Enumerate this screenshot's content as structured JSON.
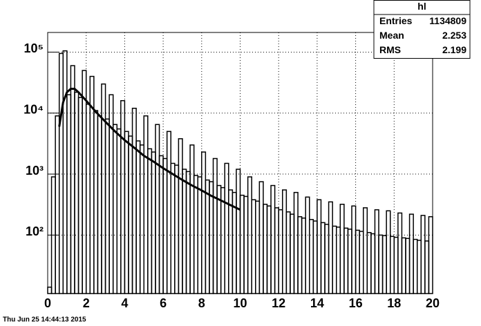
{
  "chart_data": {
    "type": "histogram",
    "bins": [
      0,
      0.2,
      0.4,
      0.6,
      0.8,
      1,
      1.2,
      1.4,
      1.6,
      1.8,
      2,
      2.2,
      2.4,
      2.6,
      2.8,
      3,
      3.2,
      3.4,
      3.6,
      3.8,
      4,
      4.2,
      4.4,
      4.6,
      4.8,
      5,
      5.2,
      5.4,
      5.6,
      5.8,
      6,
      6.2,
      6.4,
      6.6,
      6.8,
      7,
      7.2,
      7.4,
      7.6,
      7.8,
      8,
      8.2,
      8.4,
      8.6,
      8.8,
      9,
      9.2,
      9.4,
      9.6,
      9.8,
      10,
      10.2,
      10.4,
      10.6,
      10.8,
      11,
      11.2,
      11.4,
      11.6,
      11.8,
      12,
      12.2,
      12.4,
      12.6,
      12.8,
      13,
      13.2,
      13.4,
      13.6,
      13.8,
      14,
      14.2,
      14.4,
      14.6,
      14.8,
      15,
      15.2,
      15.4,
      15.6,
      15.8,
      16,
      16.2,
      16.4,
      16.6,
      16.8,
      17,
      17.2,
      17.4,
      17.6,
      17.8,
      18,
      18.2,
      18.4,
      18.6,
      18.8,
      19,
      19.2,
      19.4,
      19.6,
      19.8,
      20
    ],
    "values": [
      14,
      900,
      9000,
      95000,
      105000,
      20000,
      60000,
      22000,
      18000,
      50000,
      14000,
      40000,
      11000,
      9000,
      30000,
      8000,
      20000,
      6500,
      5500,
      16000,
      5000,
      4200,
      12000,
      3500,
      3000,
      9000,
      2600,
      2300,
      6500,
      2000,
      1800,
      5000,
      1500,
      1400,
      3800,
      1200,
      1100,
      3000,
      950,
      900,
      2300,
      800,
      750,
      1800,
      650,
      600,
      1500,
      550,
      500,
      1200,
      450,
      430,
      900,
      380,
      360,
      750,
      320,
      300,
      650,
      280,
      260,
      550,
      240,
      220,
      500,
      200,
      190,
      420,
      180,
      170,
      380,
      160,
      150,
      350,
      140,
      135,
      320,
      130,
      125,
      300,
      120,
      115,
      280,
      110,
      105,
      260,
      100,
      98,
      250,
      95,
      92,
      230,
      90,
      88,
      220,
      85,
      82,
      210,
      80,
      200
    ],
    "fit": {
      "x": [
        0.6,
        0.8,
        1.0,
        1.2,
        1.4,
        1.6,
        2.0,
        2.5,
        3,
        3.5,
        4,
        4.5,
        5,
        5.5,
        6,
        6.5,
        7,
        7.5,
        8,
        8.5,
        9,
        9.5,
        10
      ],
      "values": [
        6000,
        15000,
        22000,
        25000,
        25000,
        22000,
        16000,
        10500,
        7200,
        5000,
        3600,
        2700,
        2000,
        1600,
        1250,
        1000,
        800,
        650,
        540,
        440,
        370,
        310,
        260
      ]
    },
    "xlim": [
      0,
      20
    ],
    "xticks": [
      0,
      2,
      4,
      6,
      8,
      10,
      12,
      14,
      16,
      18,
      20
    ],
    "ylim": [
      11,
      210000
    ],
    "ylog": true,
    "yticks": [
      {
        "value": 100,
        "label": "10²"
      },
      {
        "value": 1000,
        "label": "10³"
      },
      {
        "value": 10000,
        "label": "10⁴"
      },
      {
        "value": 100000,
        "label": "10⁵"
      }
    ],
    "grid": true,
    "color": "#000000",
    "stats": {
      "title": "hl",
      "rows": [
        [
          "Entries",
          "1134809"
        ],
        [
          "Mean",
          "2.253"
        ],
        [
          "RMS",
          "2.199"
        ]
      ]
    },
    "date": "Thu Jun 25 14:44:13 2015"
  }
}
